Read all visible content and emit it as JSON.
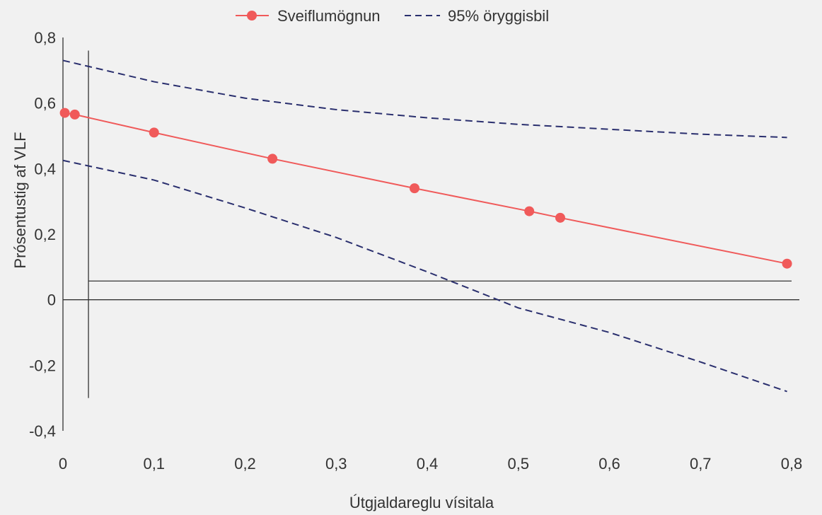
{
  "chart_data": {
    "type": "line",
    "xlabel": "Útgjaldareglu vísitala",
    "ylabel": "Prósentustig af VLF",
    "xlim": [
      0,
      0.8
    ],
    "ylim": [
      -0.4,
      0.8
    ],
    "x_ticks": [
      0,
      0.1,
      0.2,
      0.3,
      0.4,
      0.5,
      0.6,
      0.7,
      0.8
    ],
    "x_tick_labels": [
      "0",
      "0,1",
      "0,2",
      "0,3",
      "0,4",
      "0,5",
      "0,6",
      "0,7",
      "0,8"
    ],
    "y_ticks": [
      -0.4,
      -0.2,
      0,
      0.2,
      0.4,
      0.6,
      0.8
    ],
    "y_tick_labels": [
      "-0,4",
      "-0,2",
      "0",
      "0,2",
      "0,4",
      "0,6",
      "0,8"
    ],
    "legend_position": "top-center",
    "grid": false,
    "series": [
      {
        "name": "Sveiflumögnun",
        "style": "solid-markers",
        "color": "#f05a5a",
        "x": [
          0.002,
          0.013,
          0.1,
          0.23,
          0.386,
          0.512,
          0.546,
          0.795
        ],
        "y": [
          0.57,
          0.565,
          0.51,
          0.43,
          0.34,
          0.27,
          0.25,
          0.11
        ]
      },
      {
        "name": "95% öryggisbil",
        "style": "dashed",
        "color": "#2a2f6e",
        "bands": [
          {
            "x": [
              0,
              0.1,
              0.2,
              0.3,
              0.4,
              0.5,
              0.6,
              0.7,
              0.795
            ],
            "y": [
              0.73,
              0.665,
              0.615,
              0.58,
              0.555,
              0.535,
              0.52,
              0.505,
              0.495
            ]
          },
          {
            "x": [
              0,
              0.1,
              0.2,
              0.3,
              0.4,
              0.5,
              0.6,
              0.7,
              0.795
            ],
            "y": [
              0.425,
              0.365,
              0.28,
              0.19,
              0.085,
              -0.025,
              -0.1,
              -0.19,
              -0.28
            ]
          }
        ]
      }
    ],
    "reference_lines": [
      {
        "orientation": "horizontal",
        "y": 0.057,
        "x_from": 0.028,
        "x_to": 0.8
      },
      {
        "orientation": "vertical",
        "x": 0.028,
        "y_from": -0.3,
        "y_to": 0.76
      }
    ]
  }
}
